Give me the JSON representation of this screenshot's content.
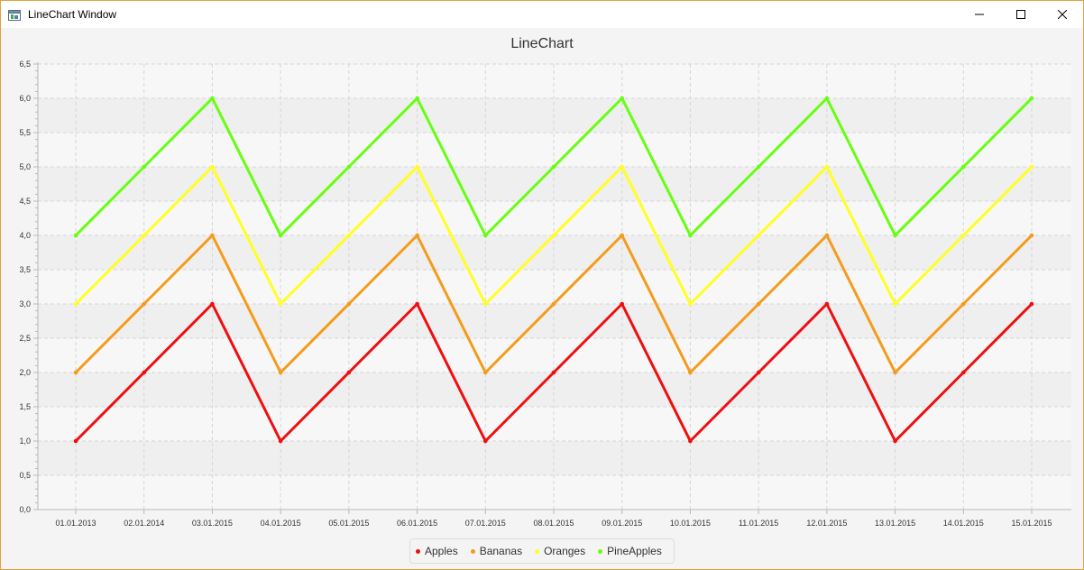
{
  "window": {
    "title": "LineChart Window"
  },
  "chart_data": {
    "type": "line",
    "title": "LineChart",
    "xlabel": "",
    "ylabel": "",
    "ylim": [
      0,
      6.5
    ],
    "yticks": [
      "0,0",
      "0,5",
      "1,0",
      "1,5",
      "2,0",
      "2,5",
      "3,0",
      "3,5",
      "4,0",
      "4,5",
      "5,0",
      "5,5",
      "6,0",
      "6,5"
    ],
    "categories": [
      "01.01.2013",
      "02.01.2014",
      "03.01.2015",
      "04.01.2015",
      "05.01.2015",
      "06.01.2015",
      "07.01.2015",
      "08.01.2015",
      "09.01.2015",
      "10.01.2015",
      "11.01.2015",
      "12.01.2015",
      "13.01.2015",
      "14.01.2015",
      "15.01.2015"
    ],
    "grid": true,
    "legend_position": "bottom-center",
    "series": [
      {
        "name": "Apples",
        "color": "#ee0f0f",
        "values": [
          1,
          2,
          3,
          1,
          2,
          3,
          1,
          2,
          3,
          1,
          2,
          3,
          1,
          2,
          3
        ]
      },
      {
        "name": "Bananas",
        "color": "#f59b1c",
        "values": [
          2,
          3,
          4,
          2,
          3,
          4,
          2,
          3,
          4,
          2,
          3,
          4,
          2,
          3,
          4
        ]
      },
      {
        "name": "Oranges",
        "color": "#ffff22",
        "values": [
          3,
          4,
          5,
          3,
          4,
          5,
          3,
          4,
          5,
          3,
          4,
          5,
          3,
          4,
          5
        ]
      },
      {
        "name": "PineApples",
        "color": "#66ff10",
        "values": [
          4,
          5,
          6,
          4,
          5,
          6,
          4,
          5,
          6,
          4,
          5,
          6,
          4,
          5,
          6
        ]
      }
    ]
  }
}
